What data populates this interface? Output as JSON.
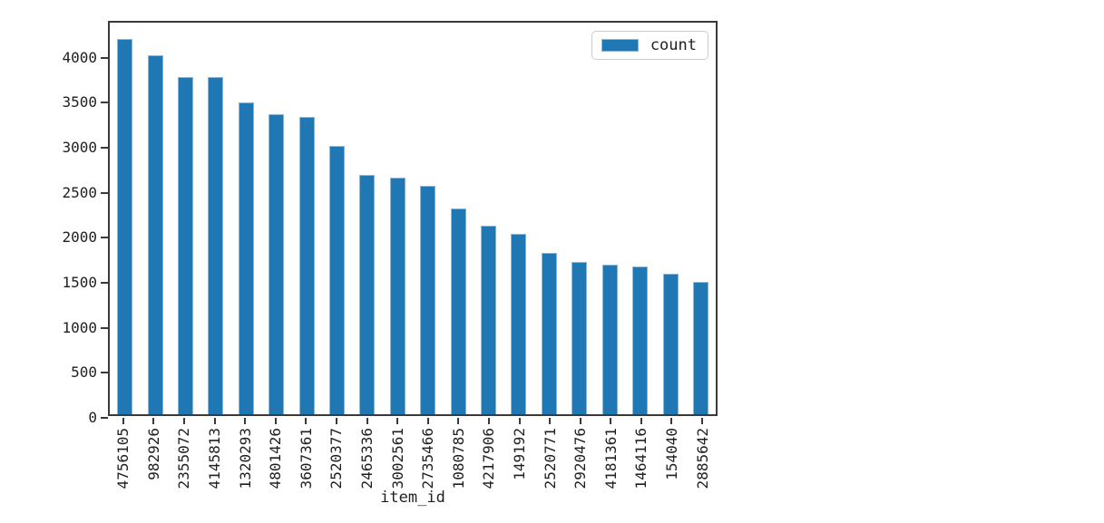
{
  "chart_data": {
    "type": "bar",
    "title": "",
    "xlabel": "item_id",
    "ylabel": "",
    "categories": [
      "4756105",
      "982926",
      "2355072",
      "4145813",
      "1320293",
      "4801426",
      "3607361",
      "2520377",
      "2465336",
      "3002561",
      "2735466",
      "1080785",
      "4217906",
      "149192",
      "2520771",
      "2920476",
      "4181361",
      "1464116",
      "154040",
      "2885642"
    ],
    "series": [
      {
        "name": "count",
        "values": [
          4170,
          3990,
          3750,
          3750,
          3460,
          3330,
          3300,
          2980,
          2660,
          2630,
          2540,
          2290,
          2090,
          2000,
          1790,
          1690,
          1660,
          1640,
          1560,
          1470
        ]
      }
    ],
    "yticks": [
      0,
      500,
      1000,
      1500,
      2000,
      2500,
      3000,
      3500,
      4000
    ],
    "ylim": [
      0,
      4390
    ],
    "grid": false,
    "legend": {
      "entries": [
        "count"
      ],
      "position": "upper right"
    },
    "colors": {
      "bar": "#1f77b4",
      "bar_edge": "#8ab6da",
      "spine": "#3a3a3a",
      "text": "#1f1f1f",
      "legend_border": "#cccccc"
    }
  }
}
